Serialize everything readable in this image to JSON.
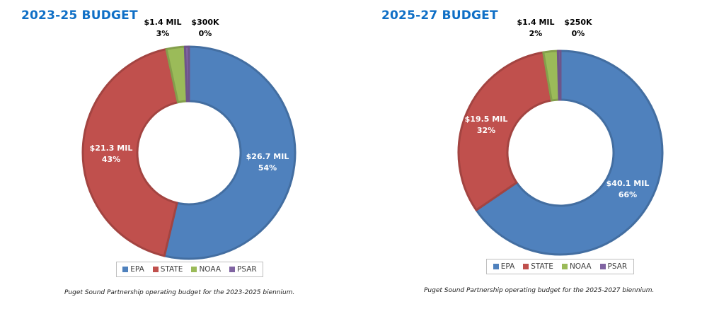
{
  "chart_data": [
    {
      "type": "pie",
      "variant": "donut",
      "title": "2023-25 BUDGET",
      "categories": [
        "EPA",
        "STATE",
        "NOAA",
        "PSAR"
      ],
      "values_millions": [
        26.7,
        21.3,
        1.4,
        0.3
      ],
      "value_labels": [
        "$26.7 MIL",
        "$21.3 MIL",
        "$1.4 MIL",
        "$300K"
      ],
      "percent_labels": [
        "54%",
        "43%",
        "3%",
        "0%"
      ],
      "colors": [
        "#4f81bd",
        "#c0504d",
        "#9bbb59",
        "#8064a2"
      ],
      "legend": [
        "EPA",
        "STATE",
        "NOAA",
        "PSAR"
      ],
      "legend_position": "bottom",
      "caption": "Puget Sound Partnership operating budget for the 2023-2025 biennium."
    },
    {
      "type": "pie",
      "variant": "donut",
      "title": "2025-27 BUDGET",
      "categories": [
        "EPA",
        "STATE",
        "NOAA",
        "PSAR"
      ],
      "values_millions": [
        40.1,
        19.5,
        1.4,
        0.25
      ],
      "value_labels": [
        "$40.1 MIL",
        "$19.5 MIL",
        "$1.4 MIL",
        "$250K"
      ],
      "percent_labels": [
        "66%",
        "32%",
        "2%",
        "0%"
      ],
      "colors": [
        "#4f81bd",
        "#c0504d",
        "#9bbb59",
        "#8064a2"
      ],
      "legend": [
        "EPA",
        "STATE",
        "NOAA",
        "PSAR"
      ],
      "legend_position": "bottom",
      "caption": "Puget Sound Partnership operating budget for the 2025-2027 biennium."
    }
  ]
}
